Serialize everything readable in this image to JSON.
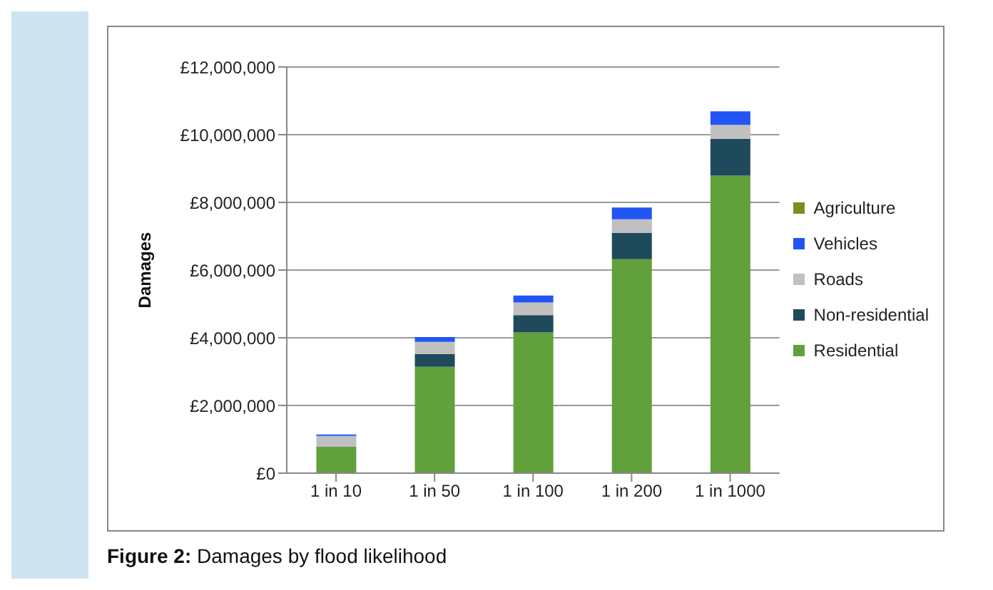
{
  "chart_data": {
    "type": "bar",
    "stacked": true,
    "ylabel": "Damages",
    "categories": [
      "1 in 10",
      "1 in 50",
      "1 in 100",
      "1 in 200",
      "1 in 1000"
    ],
    "series": [
      {
        "name": "Residential",
        "color": "#62a03c",
        "values": [
          780000,
          3140000,
          4160000,
          6320000,
          8790000
        ]
      },
      {
        "name": "Non-residential",
        "color": "#1f4a5c",
        "values": [
          null,
          380000,
          510000,
          780000,
          1090000
        ]
      },
      {
        "name": "Roads",
        "color": "#c0c0c0",
        "values": [
          320000,
          360000,
          370000,
          400000,
          410000
        ]
      },
      {
        "name": "Vehicles",
        "color": "#2155f5",
        "values": [
          40000,
          140000,
          210000,
          350000,
          400000
        ]
      },
      {
        "name": "Agriculture",
        "color": "#7f8c1e",
        "values": [
          0,
          0,
          0,
          0,
          0
        ]
      }
    ],
    "ylim": [
      0,
      12000000
    ],
    "yticks": [
      {
        "value": 0,
        "label": "£0"
      },
      {
        "value": 2000000,
        "label": "£2,000,000"
      },
      {
        "value": 4000000,
        "label": "£4,000,000"
      },
      {
        "value": 6000000,
        "label": "£6,000,000"
      },
      {
        "value": 8000000,
        "label": "£8,000,000"
      },
      {
        "value": 10000000,
        "label": "£10,000,000"
      },
      {
        "value": 12000000,
        "label": "£12,000,000"
      }
    ],
    "grid": "y",
    "legend": "right",
    "annotations": [
      "Figure 2: Damages by flood likelihood"
    ]
  }
}
